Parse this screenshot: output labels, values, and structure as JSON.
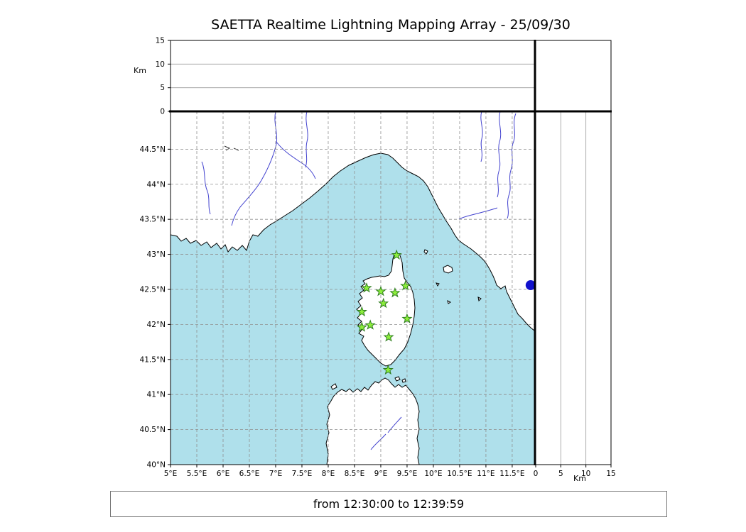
{
  "title": "SAETTA Realtime Lightning Mapping Array - 25/09/30",
  "status_bar": {
    "text": "from 12:30:00 to 12:39:59"
  },
  "colors": {
    "sea": "#afe0eb",
    "land": "#ffffff",
    "coast": "#000000",
    "river": "#4343cf",
    "grid": "#909090",
    "panel_grid": "#999999",
    "station": "#8dee3c",
    "station_edge": "#2e7d1e",
    "buoy": "#1111cc",
    "frame": "#000000"
  },
  "chart_data": {
    "type": "scatter",
    "title": "SAETTA Realtime Lightning Mapping Array - 25/09/30",
    "time_window": "from 12:30:00 to 12:39:59",
    "map": {
      "lon_range": [
        5.0,
        11.92
      ],
      "lat_range": [
        40.0,
        45.04
      ],
      "grid": "dashed",
      "lon_ticks": [
        {
          "v": 5.0,
          "label": "5°E"
        },
        {
          "v": 5.5,
          "label": "5.5°E"
        },
        {
          "v": 6.0,
          "label": "6°E"
        },
        {
          "v": 6.5,
          "label": "6.5°E"
        },
        {
          "v": 7.0,
          "label": "7°E"
        },
        {
          "v": 7.5,
          "label": "7.5°E"
        },
        {
          "v": 8.0,
          "label": "8°E"
        },
        {
          "v": 8.5,
          "label": "8.5°E"
        },
        {
          "v": 9.0,
          "label": "9°E"
        },
        {
          "v": 9.5,
          "label": "9.5°E"
        },
        {
          "v": 10.0,
          "label": "10°E"
        },
        {
          "v": 10.5,
          "label": "10.5°E"
        },
        {
          "v": 11.0,
          "label": "11°E"
        },
        {
          "v": 11.5,
          "label": "11.5°E"
        }
      ],
      "lat_ticks": [
        {
          "v": 40.0,
          "label": "40°N"
        },
        {
          "v": 40.5,
          "label": "40.5°N"
        },
        {
          "v": 41.0,
          "label": "41°N"
        },
        {
          "v": 41.5,
          "label": "41.5°N"
        },
        {
          "v": 42.0,
          "label": "42°N"
        },
        {
          "v": 42.5,
          "label": "42.5°N"
        },
        {
          "v": 43.0,
          "label": "43°N"
        },
        {
          "v": 43.5,
          "label": "43.5°N"
        },
        {
          "v": 44.0,
          "label": "44°N"
        },
        {
          "v": 44.5,
          "label": "44.5°N"
        }
      ]
    },
    "altitude_axis": {
      "label": "Km",
      "range": [
        0,
        15
      ],
      "ticks": [
        {
          "v": 0,
          "label": "0"
        },
        {
          "v": 5,
          "label": "5"
        },
        {
          "v": 10,
          "label": "10"
        },
        {
          "v": 15,
          "label": "15"
        }
      ],
      "gridlines": [
        5,
        10
      ]
    },
    "stations": [
      {
        "lon": 9.3,
        "lat": 42.99
      },
      {
        "lon": 8.73,
        "lat": 42.52
      },
      {
        "lon": 9.0,
        "lat": 42.47
      },
      {
        "lon": 9.27,
        "lat": 42.45
      },
      {
        "lon": 9.47,
        "lat": 42.55
      },
      {
        "lon": 9.05,
        "lat": 42.3
      },
      {
        "lon": 8.64,
        "lat": 42.18
      },
      {
        "lon": 9.5,
        "lat": 42.08
      },
      {
        "lon": 8.64,
        "lat": 41.96
      },
      {
        "lon": 8.8,
        "lat": 41.99
      },
      {
        "lon": 9.15,
        "lat": 41.82
      },
      {
        "lon": 9.14,
        "lat": 41.35
      }
    ],
    "buoy": {
      "lon": 11.85,
      "lat": 42.56
    }
  }
}
